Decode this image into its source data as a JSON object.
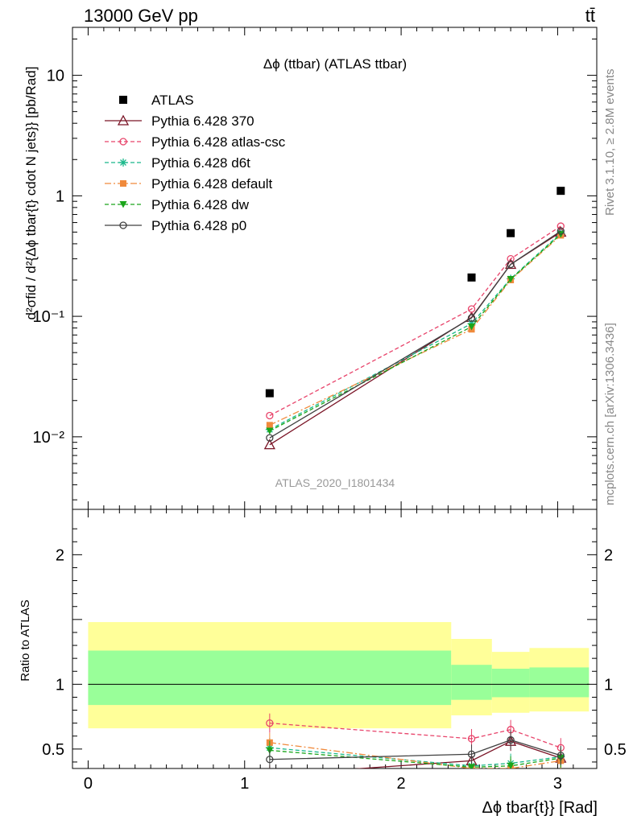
{
  "header": {
    "left": "13000 GeV pp",
    "right": "tt̄"
  },
  "plot_title": "Δϕ (ttbar) (ATLAS ttbar)",
  "watermark": "ATLAS_2020_I1801434",
  "side_labels": {
    "rivet": "Rivet 3.1.10, ≥ 2.8M events",
    "mcplots": "mcplots.cern.ch [arXiv:1306.3436]"
  },
  "y_label_main": "d²σfid / d²{Δϕ tbar{t} cdot N jets}} [pb/Rad]",
  "y_label_ratio": "Ratio to ATLAS",
  "x_label": "Δϕ tbar{t}} [Rad]",
  "colors": {
    "ATLAS": "#000000",
    "370": "#7a1426",
    "atlas-csc": "#e8436a",
    "d6t": "#19b88a",
    "default": "#f08a3c",
    "dw": "#1aa51a",
    "p0": "#404040",
    "band_yellow": "#ffff99",
    "band_green": "#99ff99"
  },
  "chart_data": [
    {
      "type": "scatter",
      "panel": "main",
      "log_y": true,
      "xlim": [
        -0.1,
        3.25
      ],
      "ylim": [
        0.0025,
        25
      ],
      "x_ticks": [
        "0",
        "1",
        "2",
        "3"
      ],
      "y_ticks": [
        "10⁻²",
        "10⁻¹",
        "1",
        "10"
      ],
      "x": [
        1.16,
        2.45,
        2.7,
        3.02
      ],
      "series": [
        {
          "name": "ATLAS",
          "key": "ATLAS",
          "marker": "square",
          "line": "none",
          "values": [
            0.023,
            0.21,
            0.49,
            1.1
          ]
        },
        {
          "name": "Pythia 6.428 370",
          "key": "370",
          "marker": "triangle",
          "line": "solid",
          "values": [
            0.0086,
            0.098,
            0.27,
            0.5
          ]
        },
        {
          "name": "Pythia 6.428 atlas-csc",
          "key": "atlas-csc",
          "marker": "circle-open",
          "line": "dashed",
          "values": [
            0.015,
            0.115,
            0.3,
            0.56
          ]
        },
        {
          "name": "Pythia 6.428 d6t",
          "key": "d6t",
          "marker": "star",
          "line": "dashed",
          "values": [
            0.0115,
            0.087,
            0.205,
            0.49
          ]
        },
        {
          "name": "Pythia 6.428 default",
          "key": "default",
          "marker": "square-small",
          "line": "dashdot",
          "values": [
            0.0125,
            0.078,
            0.2,
            0.47
          ]
        },
        {
          "name": "Pythia 6.428 dw",
          "key": "dw",
          "marker": "triangle-down",
          "line": "dashed",
          "values": [
            0.0112,
            0.082,
            0.203,
            0.48
          ]
        },
        {
          "name": "Pythia 6.428 p0",
          "key": "p0",
          "marker": "circle-open",
          "line": "solid",
          "values": [
            0.0098,
            0.097,
            0.27,
            0.51
          ]
        }
      ]
    },
    {
      "type": "scatter",
      "panel": "ratio",
      "log_y": false,
      "xlim": [
        -0.1,
        3.25
      ],
      "ylim": [
        0.35,
        2.35
      ],
      "y_ticks": [
        "0.5",
        "1",
        "2"
      ],
      "band_edges": [
        0,
        2.32,
        2.58,
        2.82,
        3.2
      ],
      "band_yellow": [
        [
          0.66,
          1.48
        ],
        [
          0.76,
          1.35
        ],
        [
          0.78,
          1.25
        ],
        [
          0.79,
          1.28
        ]
      ],
      "band_green": [
        [
          0.84,
          1.26
        ],
        [
          0.88,
          1.15
        ],
        [
          0.9,
          1.12
        ],
        [
          0.9,
          1.13
        ]
      ],
      "x": [
        1.16,
        2.45,
        2.7,
        3.02
      ],
      "series": [
        {
          "name": "Pythia 6.428 370",
          "key": "370",
          "values": [
            0.3,
            0.41,
            0.56,
            0.43
          ]
        },
        {
          "name": "Pythia 6.428 atlas-csc",
          "key": "atlas-csc",
          "values": [
            0.7,
            0.58,
            0.65,
            0.51
          ]
        },
        {
          "name": "Pythia 6.428 d6t",
          "key": "d6t",
          "values": [
            0.51,
            0.37,
            0.39,
            0.44
          ]
        },
        {
          "name": "Pythia 6.428 default",
          "key": "default",
          "values": [
            0.55,
            0.35,
            0.35,
            0.41
          ]
        },
        {
          "name": "Pythia 6.428 dw",
          "key": "dw",
          "values": [
            0.49,
            0.36,
            0.37,
            0.43
          ]
        },
        {
          "name": "Pythia 6.428 p0",
          "key": "p0",
          "values": [
            0.42,
            0.46,
            0.57,
            0.45
          ]
        }
      ]
    }
  ]
}
